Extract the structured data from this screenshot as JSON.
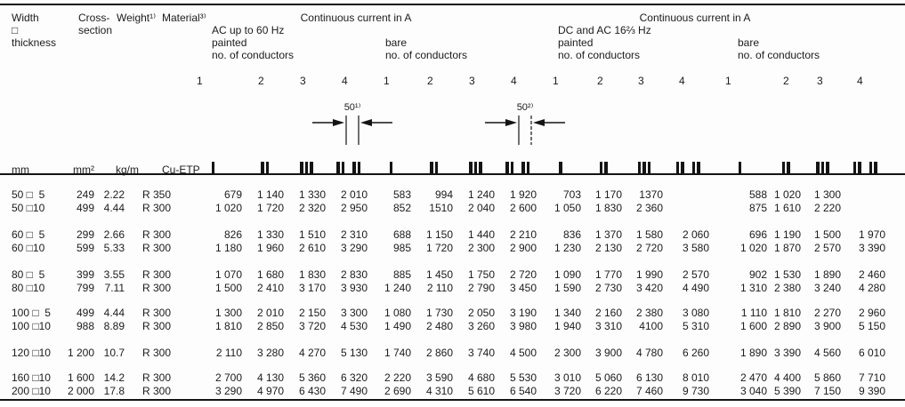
{
  "table": {
    "header": {
      "col1_lines": [
        "Width",
        "□",
        "thickness"
      ],
      "col2_lines": [
        "Cross-",
        "section"
      ],
      "weight": "Weight¹⁾",
      "material": "Material³⁾",
      "groups": [
        {
          "title": "Continuous current in A",
          "freq": "AC up to 60 Hz",
          "subs": [
            {
              "name": "painted",
              "cond": "no. of conductors",
              "nums": [
                "1",
                "2",
                "3",
                "4"
              ]
            },
            {
              "name": "bare",
              "cond": "no. of conductors",
              "nums": [
                "1",
                "2",
                "3",
                "4"
              ]
            }
          ]
        },
        {
          "title": "Continuous current in A",
          "freq": "DC and AC 16⅔ Hz",
          "subs": [
            {
              "name": "painted",
              "cond": "no. of conductors",
              "nums": [
                "1",
                "2",
                "3",
                "4"
              ]
            },
            {
              "name": "bare",
              "cond": "no. of conductors",
              "nums": [
                "1",
                "2",
                "3",
                "4"
              ]
            }
          ]
        }
      ],
      "units": {
        "size": "mm",
        "cross": "mm²",
        "weight": "kg/m",
        "material": "Cu-ETP"
      }
    },
    "diagrams": [
      {
        "label": "50¹⁾"
      },
      {
        "label": "50²⁾"
      }
    ],
    "icon_types": [
      1,
      2,
      3,
      4,
      1,
      2,
      3,
      4,
      1,
      2,
      3,
      4,
      1,
      2,
      3,
      4
    ],
    "rows": [
      {
        "size": "50 □  5",
        "cross": "249",
        "weight": "2.22",
        "material": "R 350",
        "values": [
          "679",
          "1 140",
          "1 330",
          "2 010",
          "583",
          "994",
          "1 240",
          "1 920",
          "703",
          "1 170",
          "1370",
          "",
          "588",
          "1 020",
          "1 300",
          ""
        ]
      },
      {
        "size": "50 □10",
        "cross": "499",
        "weight": "4.44",
        "material": "R 300",
        "values": [
          "1 020",
          "1 720",
          "2 320",
          "2 950",
          "852",
          "1510",
          "2 040",
          "2 600",
          "1 050",
          "1 830",
          "2 360",
          "",
          "875",
          "1 610",
          "2 220",
          ""
        ]
      },
      {
        "size": "60 □  5",
        "cross": "299",
        "weight": "2.66",
        "material": "R 300",
        "values": [
          "826",
          "1 330",
          "1 510",
          "2 310",
          "688",
          "1 150",
          "1 440",
          "2 210",
          "836",
          "1 370",
          "1 580",
          "2 060",
          "696",
          "1 190",
          "1 500",
          "1 970"
        ]
      },
      {
        "size": "60 □10",
        "cross": "599",
        "weight": "5.33",
        "material": "R 300",
        "values": [
          "1 180",
          "1 960",
          "2 610",
          "3 290",
          "985",
          "1 720",
          "2 300",
          "2 900",
          "1 230",
          "2 130",
          "2 720",
          "3 580",
          "1 020",
          "1 870",
          "2 570",
          "3 390"
        ]
      },
      {
        "size": "80 □  5",
        "cross": "399",
        "weight": "3.55",
        "material": "R 300",
        "values": [
          "1 070",
          "1 680",
          "1 830",
          "2 830",
          "885",
          "1 450",
          "1 750",
          "2 720",
          "1 090",
          "1 770",
          "1 990",
          "2 570",
          "902",
          "1 530",
          "1 890",
          "2 460"
        ]
      },
      {
        "size": "80 □10",
        "cross": "799",
        "weight": "7.11",
        "material": "R 300",
        "values": [
          "1 500",
          "2 410",
          "3 170",
          "3 930",
          "1 240",
          "2 110",
          "2 790",
          "3 450",
          "1 590",
          "2 730",
          "3 420",
          "4 490",
          "1 310",
          "2 380",
          "3 240",
          "4 280"
        ]
      },
      {
        "size": "100 □  5",
        "cross": "499",
        "weight": "4.44",
        "material": "R 300",
        "values": [
          "1 300",
          "2 010",
          "2 150",
          "3 300",
          "1 080",
          "1 730",
          "2 050",
          "3 190",
          "1 340",
          "2 160",
          "2 380",
          "3 080",
          "1 110",
          "1 810",
          "2 270",
          "2 960"
        ]
      },
      {
        "size": "100 □10",
        "cross": "988",
        "weight": "8.89",
        "material": "R 300",
        "values": [
          "1 810",
          "2 850",
          "3 720",
          "4 530",
          "1 490",
          "2 480",
          "3 260",
          "3 980",
          "1 940",
          "3 310",
          "4100",
          "5 310",
          "1 600",
          "2 890",
          "3 900",
          "5 150"
        ]
      },
      {
        "size": "120 □10",
        "cross": "1 200",
        "weight": "10.7",
        "material": "R 300",
        "values": [
          "2 110",
          "3 280",
          "4 270",
          "5 130",
          "1 740",
          "2 860",
          "3 740",
          "4 500",
          "2 300",
          "3 900",
          "4 780",
          "6 260",
          "1 890",
          "3 390",
          "4 560",
          "6 010"
        ]
      },
      {
        "size": "160 □10",
        "cross": "1 600",
        "weight": "14.2",
        "material": "R 300",
        "values": [
          "2 700",
          "4 130",
          "5 360",
          "6 320",
          "2 220",
          "3 590",
          "4 680",
          "5 530",
          "3 010",
          "5 060",
          "6 130",
          "8 010",
          "2 470",
          "4 400",
          "5 860",
          "7 710"
        ]
      },
      {
        "size": "200 □10",
        "cross": "2 000",
        "weight": "17.8",
        "material": "R 300",
        "values": [
          "3 290",
          "4 970",
          "6 430",
          "7 490",
          "2 690",
          "4 310",
          "5 610",
          "6 540",
          "3 720",
          "6 220",
          "7 460",
          "9 730",
          "3 040",
          "5 390",
          "7 150",
          "9 390"
        ]
      }
    ]
  }
}
